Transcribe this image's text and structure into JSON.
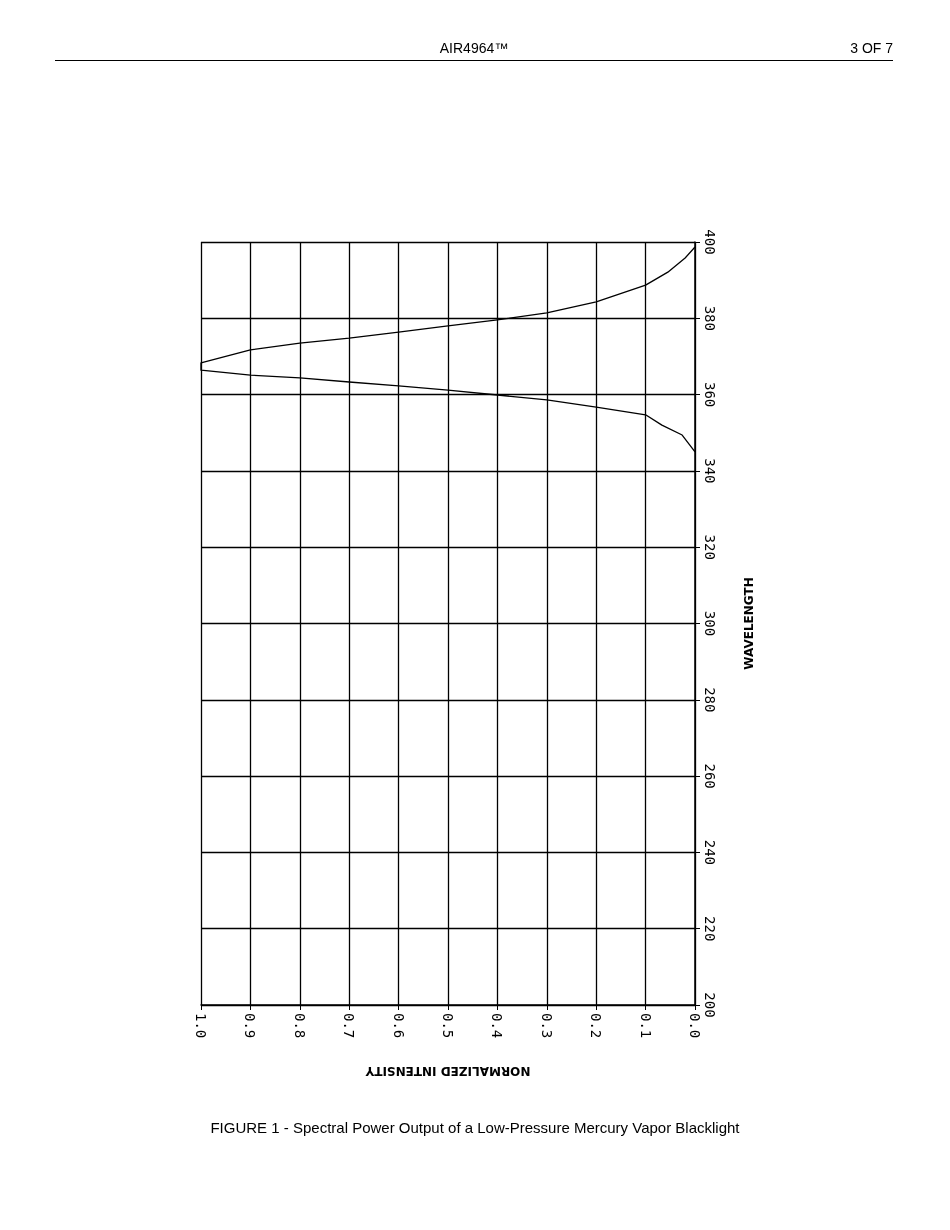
{
  "chart_data": {
    "type": "line",
    "title": "FIGURE 1 - Spectral Power Output of a Low-Pressure Mercury Vapor Blacklight",
    "xlabel": "NORMALIZED INTENSITY",
    "ylabel": "WAVELENGTH",
    "annotations": [
      "AIR4964™",
      "3 OF 7"
    ],
    "x": [
      0.0,
      0.026,
      0.067,
      0.1,
      0.2,
      0.3,
      0.4,
      0.5,
      0.6,
      0.7,
      0.8,
      0.9,
      1.0,
      1.0,
      0.9,
      0.8,
      0.7,
      0.6,
      0.5,
      0.4,
      0.3,
      0.2,
      0.1,
      0.055,
      0.02,
      0.0
    ],
    "series": [
      {
        "color": "#000000",
        "values": [
          345.0,
          349.4,
          352.0,
          354.7,
          356.7,
          358.6,
          359.9,
          361.2,
          362.3,
          363.3,
          364.4,
          365.1,
          366.4,
          368.3,
          371.7,
          373.5,
          374.8,
          376.4,
          378.0,
          379.6,
          381.4,
          384.3,
          388.7,
          392.1,
          395.8,
          398.7
        ]
      }
    ],
    "xlim": [
      1.0,
      0.0
    ],
    "ylim": [
      200,
      400
    ],
    "xticks": [
      {
        "value": 1.0,
        "label": "1.0"
      },
      0.9,
      0.8,
      0.7,
      0.6,
      0.5,
      0.4,
      0.3,
      0.2,
      0.1,
      {
        "value": 0.0,
        "label": "0.0"
      }
    ],
    "yticks": [
      200,
      220,
      240,
      260,
      280,
      300,
      320,
      340,
      360,
      380,
      400
    ],
    "grid": true,
    "marker": "none",
    "line_style": "solid"
  }
}
